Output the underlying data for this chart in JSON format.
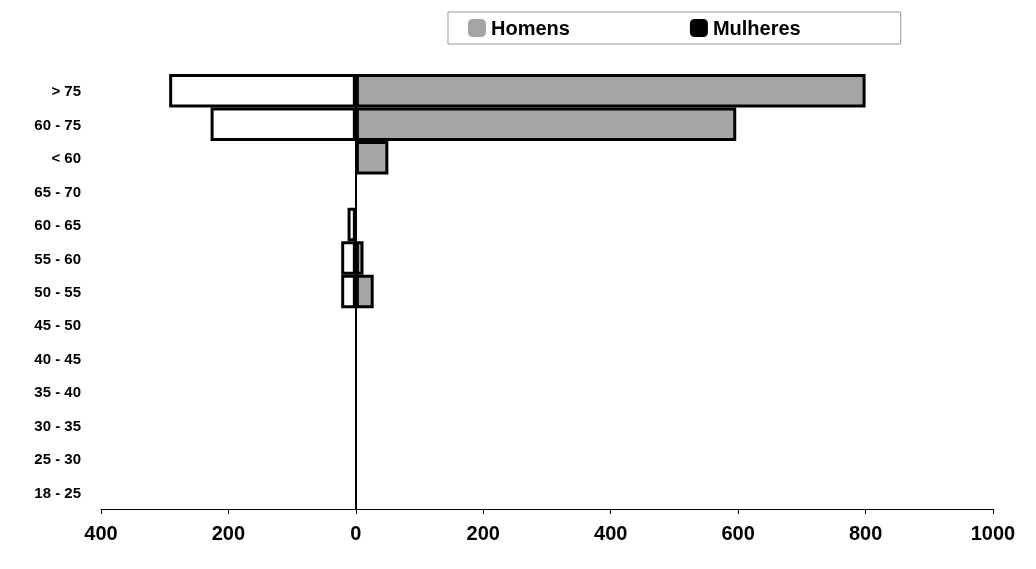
{
  "chart_data": {
    "type": "bar",
    "orientation": "horizontal",
    "categories": [
      "> 75",
      "60 - 75",
      "< 60",
      "65 - 70",
      "60 - 65",
      "55 - 60",
      "50 - 55",
      "45 - 50",
      "40 - 45",
      "35 - 40",
      "30 - 35",
      "25 - 30",
      "18 - 25"
    ],
    "series": [
      {
        "name": "Homens",
        "color": "#a6a6a6",
        "values": [
          800,
          597,
          51,
          0,
          0,
          12,
          28,
          0,
          0,
          0,
          0,
          0,
          0
        ]
      },
      {
        "name": "Mulheres",
        "color": "#000000",
        "values": [
          -293,
          -228,
          0,
          0,
          -13,
          -23,
          -23,
          0,
          0,
          0,
          0,
          0,
          0
        ]
      }
    ],
    "xlim": [
      -400,
      1000
    ],
    "xticks": [
      {
        "value": -400,
        "label": "400"
      },
      {
        "value": -200,
        "label": "200"
      },
      0,
      200,
      400,
      600,
      800,
      1000
    ],
    "ref_lines": [
      {
        "axis": "x",
        "value": 0,
        "color": "#000000"
      }
    ],
    "grid": false,
    "legend": "top"
  }
}
